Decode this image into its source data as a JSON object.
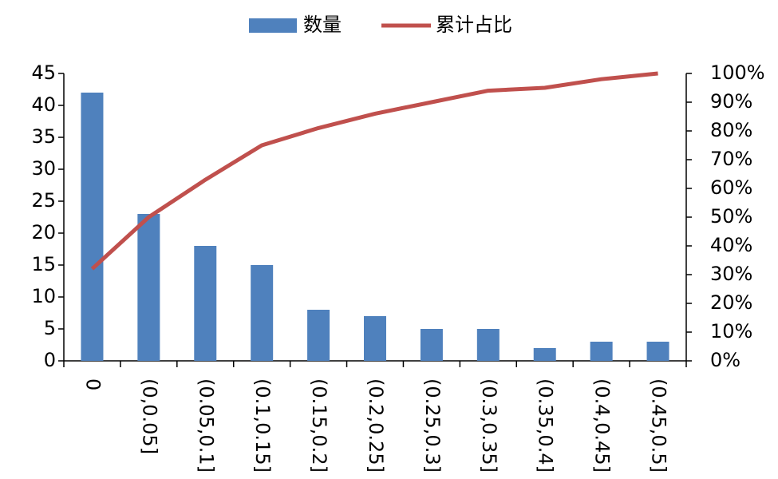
{
  "chart_data": {
    "type": "bar",
    "categories": [
      "0",
      "(0,0.05]",
      "(0.05,0.1]",
      "(0.1,0.15]",
      "(0.15,0.2]",
      "(0.2,0.25]",
      "(0.25,0.3]",
      "(0.3,0.35]",
      "(0.35,0.4]",
      "(0.4,0.45]",
      "(0.45,0.5]"
    ],
    "series": [
      {
        "name": "数量",
        "type": "bar",
        "color": "#4f81bd",
        "values": [
          42,
          23,
          18,
          15,
          8,
          7,
          5,
          5,
          2,
          3,
          3
        ]
      },
      {
        "name": "累计占比",
        "type": "line",
        "axis": "y2",
        "color": "#c0504d",
        "values": [
          32,
          50,
          63,
          75,
          81,
          86,
          90,
          94,
          95,
          98,
          100
        ]
      }
    ],
    "ylim": [
      0,
      45
    ],
    "yticks": [
      0,
      5,
      10,
      15,
      20,
      25,
      30,
      35,
      40,
      45
    ],
    "y2lim": [
      0,
      100
    ],
    "y2ticks": [
      {
        "value": 0,
        "label": "0%"
      },
      {
        "value": 10,
        "label": "10%"
      },
      {
        "value": 20,
        "label": "20%"
      },
      {
        "value": 30,
        "label": "30%"
      },
      {
        "value": 40,
        "label": "40%"
      },
      {
        "value": 50,
        "label": "50%"
      },
      {
        "value": 60,
        "label": "60%"
      },
      {
        "value": 70,
        "label": "70%"
      },
      {
        "value": 80,
        "label": "80%"
      },
      {
        "value": 90,
        "label": "90%"
      },
      {
        "value": 100,
        "label": "100%"
      }
    ],
    "grid": false,
    "legend": "top"
  }
}
